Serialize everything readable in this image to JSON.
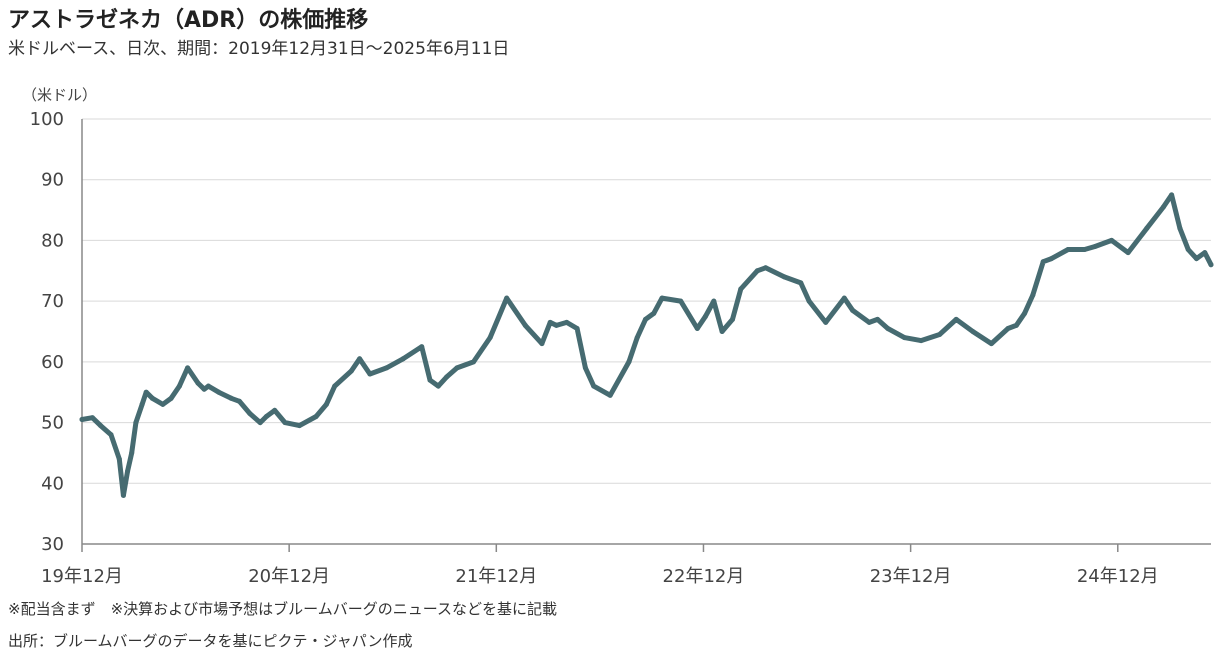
{
  "title": "アストラゼネカ（ADR）の株価推移",
  "subtitle": "米ドルベース、日次、期間：2019年12月31日～2025年6月11日",
  "unit_label": "（米ドル）",
  "notes": {
    "note1": "※配当含まず　※決算および市場予想はブルームバーグのニュースなどを基に記載",
    "source": "出所：ブルームバーグのデータを基にピクテ・ジャパン作成"
  },
  "colors": {
    "line": "#466b71",
    "grid": "#d9d9d9",
    "axis": "#888888"
  },
  "chart_data": {
    "type": "line",
    "ylim": [
      30,
      100
    ],
    "yticks": [
      30,
      40,
      50,
      60,
      70,
      80,
      90,
      100
    ],
    "xlim": [
      2019.99,
      2025.44
    ],
    "xticks": [
      {
        "x": 2019.99,
        "label": "19年12月"
      },
      {
        "x": 2020.99,
        "label": "20年12月"
      },
      {
        "x": 2021.99,
        "label": "21年12月"
      },
      {
        "x": 2022.99,
        "label": "22年12月"
      },
      {
        "x": 2023.99,
        "label": "23年12月"
      },
      {
        "x": 2024.99,
        "label": "24年12月"
      }
    ],
    "grid": true,
    "series": [
      {
        "x": [
          2019.99,
          2020.04,
          2020.08,
          2020.13,
          2020.17,
          2020.19,
          2020.21,
          2020.23,
          2020.25,
          2020.28,
          2020.3,
          2020.33,
          2020.38,
          2020.42,
          2020.46,
          2020.5,
          2020.55,
          2020.58,
          2020.6,
          2020.65,
          2020.71,
          2020.75,
          2020.8,
          2020.85,
          2020.88,
          2020.92,
          2020.97,
          2021.04,
          2021.12,
          2021.17,
          2021.21,
          2021.29,
          2021.33,
          2021.38,
          2021.46,
          2021.54,
          2021.63,
          2021.67,
          2021.71,
          2021.75,
          2021.8,
          2021.88,
          2021.96,
          2022.04,
          2022.13,
          2022.21,
          2022.25,
          2022.28,
          2022.33,
          2022.38,
          2022.42,
          2022.46,
          2022.54,
          2022.63,
          2022.67,
          2022.71,
          2022.75,
          2022.79,
          2022.88,
          2022.96,
          2023.0,
          2023.04,
          2023.08,
          2023.13,
          2023.17,
          2023.25,
          2023.29,
          2023.38,
          2023.46,
          2023.5,
          2023.58,
          2023.67,
          2023.71,
          2023.79,
          2023.83,
          2023.88,
          2023.96,
          2024.04,
          2024.13,
          2024.21,
          2024.29,
          2024.38,
          2024.46,
          2024.5,
          2024.54,
          2024.58,
          2024.63,
          2024.67,
          2024.75,
          2024.83,
          2024.88,
          2024.96,
          2025.04,
          2025.13,
          2025.21,
          2025.25,
          2025.29,
          2025.33,
          2025.37,
          2025.41,
          2025.44
        ],
        "y": [
          50.5,
          50.8,
          49.5,
          48.0,
          44.0,
          38.0,
          42.0,
          45.0,
          50.0,
          53.0,
          55.0,
          54.0,
          53.0,
          54.0,
          56.0,
          59.0,
          56.5,
          55.5,
          56.0,
          55.0,
          54.0,
          53.5,
          51.5,
          50.0,
          51.0,
          52.0,
          50.0,
          49.5,
          51.0,
          53.0,
          56.0,
          58.5,
          60.5,
          58.0,
          59.0,
          60.5,
          62.5,
          57.0,
          56.0,
          57.5,
          59.0,
          60.0,
          64.0,
          70.5,
          66.0,
          63.0,
          66.5,
          66.0,
          66.5,
          65.5,
          59.0,
          56.0,
          54.5,
          60.0,
          64.0,
          67.0,
          68.0,
          70.5,
          70.0,
          65.5,
          67.5,
          70.0,
          65.0,
          67.0,
          72.0,
          75.0,
          75.5,
          74.0,
          73.0,
          70.0,
          66.5,
          70.5,
          68.5,
          66.5,
          67.0,
          65.5,
          64.0,
          63.5,
          64.5,
          67.0,
          65.0,
          63.0,
          65.5,
          66.0,
          68.0,
          71.0,
          76.5,
          77.0,
          78.5,
          78.5,
          79.0,
          80.0,
          78.0,
          82.0,
          85.5,
          87.5,
          82.0,
          78.5,
          77.0,
          78.0,
          76.0
        ]
      }
    ]
  }
}
